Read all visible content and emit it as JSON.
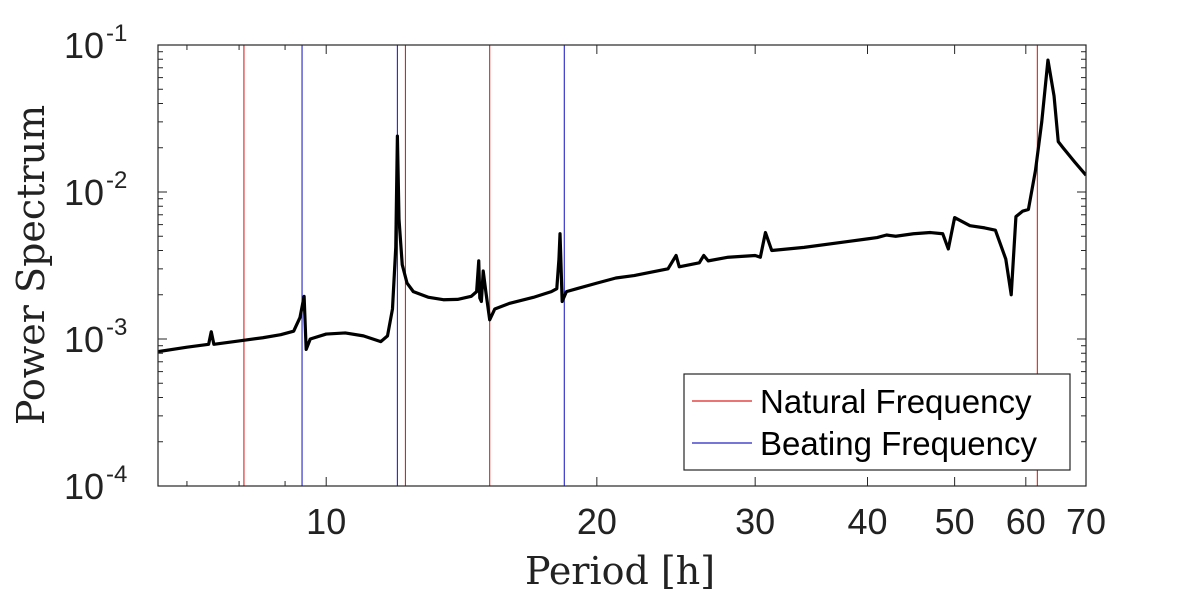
{
  "chart_data": {
    "type": "line",
    "title": "",
    "xlabel": "Period [h]",
    "ylabel": "Power Spectrum",
    "xscale": "log",
    "yscale": "log",
    "xlim": [
      6.5,
      70
    ],
    "ylim": [
      0.0001,
      0.1
    ],
    "x_ticks": [
      {
        "value": 10,
        "label": "10"
      },
      {
        "value": 20,
        "label": "20"
      },
      {
        "value": 30,
        "label": "30"
      },
      {
        "value": 40,
        "label": "40"
      },
      {
        "value": 50,
        "label": "50"
      },
      {
        "value": 60,
        "label": "60"
      },
      {
        "value": 70,
        "label": "70"
      }
    ],
    "y_ticks": [
      {
        "value": 0.0001,
        "base": "10",
        "exp": "-4"
      },
      {
        "value": 0.001,
        "base": "10",
        "exp": "-3"
      },
      {
        "value": 0.01,
        "base": "10",
        "exp": "-2"
      },
      {
        "value": 0.1,
        "base": "10",
        "exp": "-1"
      }
    ],
    "grid": false,
    "legend_position": "bottom-right",
    "series": [
      {
        "name": "Power Spectrum",
        "color": "#000000",
        "points": [
          [
            6.5,
            0.00082
          ],
          [
            7.0,
            0.00088
          ],
          [
            7.4,
            0.00092
          ],
          [
            7.45,
            0.00112
          ],
          [
            7.5,
            0.00092
          ],
          [
            8.0,
            0.00097
          ],
          [
            8.5,
            0.00102
          ],
          [
            8.9,
            0.00107
          ],
          [
            9.2,
            0.00113
          ],
          [
            9.35,
            0.0014
          ],
          [
            9.45,
            0.00195
          ],
          [
            9.5,
            0.00085
          ],
          [
            9.6,
            0.001
          ],
          [
            10.0,
            0.00108
          ],
          [
            10.5,
            0.0011
          ],
          [
            11.0,
            0.00105
          ],
          [
            11.5,
            0.00096
          ],
          [
            11.7,
            0.00105
          ],
          [
            11.85,
            0.0016
          ],
          [
            11.95,
            0.0042
          ],
          [
            12.0,
            0.024
          ],
          [
            12.05,
            0.0065
          ],
          [
            12.15,
            0.0032
          ],
          [
            12.3,
            0.0024
          ],
          [
            12.5,
            0.0021
          ],
          [
            13.0,
            0.00192
          ],
          [
            13.5,
            0.00185
          ],
          [
            14.0,
            0.00186
          ],
          [
            14.5,
            0.00195
          ],
          [
            14.7,
            0.0021
          ],
          [
            14.78,
            0.0034
          ],
          [
            14.82,
            0.0019
          ],
          [
            14.88,
            0.0018
          ],
          [
            14.95,
            0.0029
          ],
          [
            15.05,
            0.0021
          ],
          [
            15.2,
            0.00135
          ],
          [
            15.4,
            0.0016
          ],
          [
            16.0,
            0.00175
          ],
          [
            17.0,
            0.00192
          ],
          [
            17.8,
            0.0021
          ],
          [
            18.05,
            0.0022
          ],
          [
            18.15,
            0.0035
          ],
          [
            18.2,
            0.0052
          ],
          [
            18.3,
            0.0018
          ],
          [
            18.5,
            0.0021
          ],
          [
            19.0,
            0.0022
          ],
          [
            20.0,
            0.0024
          ],
          [
            21.0,
            0.0026
          ],
          [
            22.0,
            0.0027
          ],
          [
            24.0,
            0.003
          ],
          [
            24.5,
            0.0037
          ],
          [
            24.7,
            0.0031
          ],
          [
            26.0,
            0.0033
          ],
          [
            26.3,
            0.0037
          ],
          [
            26.6,
            0.0034
          ],
          [
            28.0,
            0.0036
          ],
          [
            30.0,
            0.0037
          ],
          [
            30.4,
            0.0036
          ],
          [
            30.8,
            0.0053
          ],
          [
            31.3,
            0.004
          ],
          [
            34.0,
            0.0042
          ],
          [
            38.0,
            0.0046
          ],
          [
            40.0,
            0.0048
          ],
          [
            41.0,
            0.0049
          ],
          [
            42.0,
            0.0051
          ],
          [
            43.0,
            0.005
          ],
          [
            45.0,
            0.0052
          ],
          [
            47.0,
            0.0053
          ],
          [
            48.5,
            0.0052
          ],
          [
            49.2,
            0.0041
          ],
          [
            50.0,
            0.0067
          ],
          [
            52.0,
            0.0059
          ],
          [
            54.0,
            0.0057
          ],
          [
            55.5,
            0.0055
          ],
          [
            57.0,
            0.0035
          ],
          [
            57.8,
            0.002
          ],
          [
            58.5,
            0.0068
          ],
          [
            59.5,
            0.0074
          ],
          [
            60.4,
            0.0076
          ],
          [
            61.5,
            0.014
          ],
          [
            62.5,
            0.03
          ],
          [
            63.5,
            0.079
          ],
          [
            64.5,
            0.045
          ],
          [
            65.2,
            0.022
          ],
          [
            66.0,
            0.02
          ],
          [
            68.0,
            0.016
          ],
          [
            70.0,
            0.013
          ]
        ]
      }
    ],
    "vertical_lines": [
      {
        "series": "Natural Frequency",
        "color": "#e02020",
        "x": [
          8.1,
          12.25,
          15.2,
          61.8
        ]
      },
      {
        "series": "Beating Frequency",
        "color": "#2323c8",
        "x": [
          9.4,
          12.0,
          18.4
        ]
      }
    ],
    "legend": [
      {
        "label": "Natural Frequency",
        "color": "#e02020"
      },
      {
        "label": "Beating Frequency",
        "color": "#2323c8"
      }
    ]
  }
}
